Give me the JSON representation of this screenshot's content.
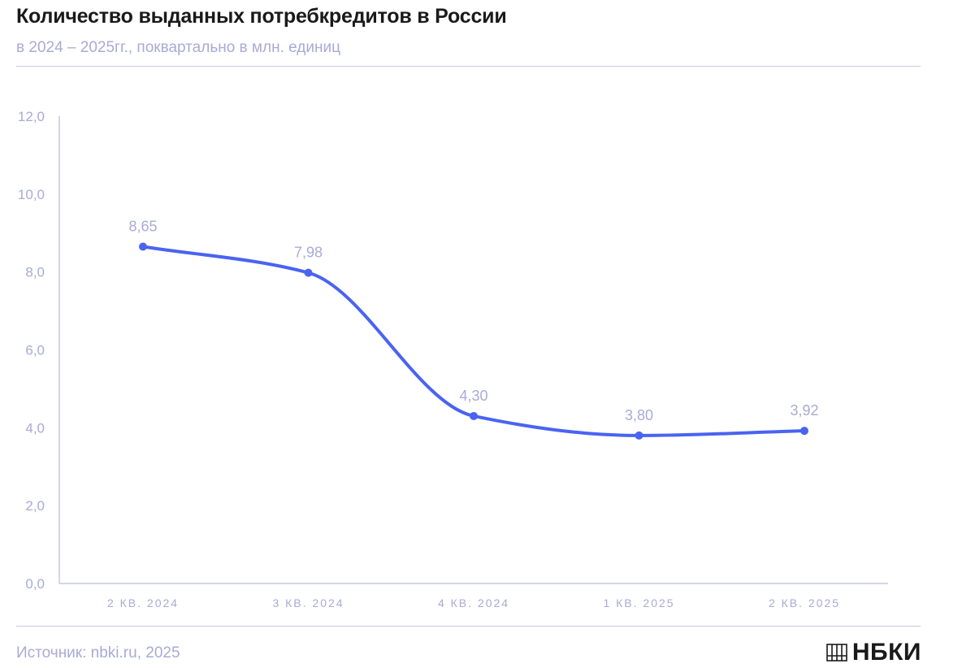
{
  "header": {
    "title": "Количество выданных потребкредитов в России",
    "subtitle": "в 2024 – 2025гг., поквартально в млн. единиц"
  },
  "footer": {
    "source": "Источник: nbki.ru, 2025",
    "logo_text": "НБКИ"
  },
  "colors": {
    "line": "#4a63f0",
    "axis": "#a8abd6",
    "tick_text": "#a8abd6",
    "label_text": "#a8abd6"
  },
  "chart_data": {
    "type": "line",
    "categories": [
      "2 КВ. 2024",
      "3 КВ. 2024",
      "4 КВ. 2024",
      "1 КВ. 2025",
      "2 КВ. 2025"
    ],
    "values": [
      8.65,
      7.98,
      4.3,
      3.8,
      3.92
    ],
    "data_labels": [
      "8,65",
      "7,98",
      "4,30",
      "3,80",
      "3,92"
    ],
    "y_ticks": [
      0,
      2,
      4,
      6,
      8,
      10,
      12
    ],
    "y_tick_labels": [
      "0,0",
      "2,0",
      "4,0",
      "6,0",
      "8,0",
      "10,0",
      "12,0"
    ],
    "ylim": [
      0,
      12
    ],
    "smooth": true,
    "grid": false
  }
}
